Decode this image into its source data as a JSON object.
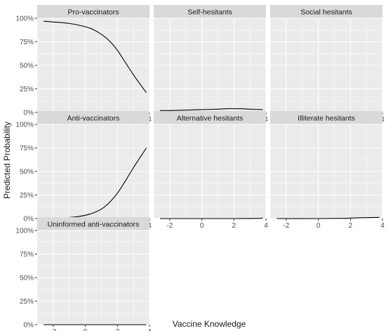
{
  "chart_data": {
    "type": "line",
    "layout": "facet-grid",
    "xlabel": "Vaccine Knowledge",
    "ylabel": "Predicted Probability",
    "xlim": [
      -3,
      4
    ],
    "ylim": [
      0,
      1
    ],
    "x_ticks": [
      -2,
      0,
      2,
      4
    ],
    "y_ticks": [
      0,
      0.25,
      0.5,
      0.75,
      1
    ],
    "x_tick_labels": [
      "-2",
      "0",
      "2",
      "4"
    ],
    "y_tick_labels": [
      "0%",
      "25%",
      "50%",
      "75%",
      "100%"
    ],
    "grid": true,
    "panel_background": "#ebebeb",
    "strip_background": "#d9d9d9",
    "grid_color": "#ffffff",
    "line_color": "#000000",
    "panels": [
      {
        "title": "Pro-vaccinators",
        "x": [
          -2.6,
          -2,
          -1.5,
          -1,
          -0.5,
          0,
          0.5,
          1,
          1.5,
          2,
          2.5,
          3,
          3.5,
          3.8
        ],
        "y": [
          0.97,
          0.96,
          0.955,
          0.945,
          0.93,
          0.91,
          0.88,
          0.83,
          0.76,
          0.66,
          0.53,
          0.4,
          0.28,
          0.21
        ]
      },
      {
        "title": "Self-hesitants",
        "x": [
          -2.6,
          -2,
          -1,
          0,
          1,
          1.5,
          2,
          2.5,
          3,
          3.8
        ],
        "y": [
          0.02,
          0.02,
          0.025,
          0.03,
          0.035,
          0.04,
          0.04,
          0.04,
          0.035,
          0.03
        ]
      },
      {
        "title": "Social hesitants",
        "x": [
          -2.6,
          -1,
          0,
          1,
          2,
          3,
          3.8
        ],
        "y": [
          0.01,
          0.01,
          0.01,
          0.01,
          0.01,
          0.01,
          0.008
        ]
      },
      {
        "title": "Anti-vaccinators",
        "x": [
          -2.6,
          -2,
          -1.5,
          -1,
          -0.5,
          0,
          0.5,
          1,
          1.5,
          2,
          2.5,
          3,
          3.5,
          3.8
        ],
        "y": [
          0.0,
          0.003,
          0.007,
          0.012,
          0.02,
          0.035,
          0.06,
          0.1,
          0.17,
          0.27,
          0.4,
          0.54,
          0.67,
          0.75
        ]
      },
      {
        "title": "Alternative hesitants",
        "x": [
          -2.6,
          0,
          2,
          3.5,
          3.8
        ],
        "y": [
          0.0,
          0.0,
          0.0,
          0.002,
          0.008
        ]
      },
      {
        "title": "Illiterate hesitants",
        "x": [
          -2.6,
          0,
          1.5,
          2,
          3,
          3.8
        ],
        "y": [
          0.0,
          0.0,
          0.002,
          0.005,
          0.01,
          0.012
        ]
      },
      {
        "title": "Uninformed anti-vaccinators",
        "x": [
          -2.6,
          0,
          2,
          3.8
        ],
        "y": [
          0.0,
          0.0,
          0.0,
          0.0
        ]
      }
    ]
  }
}
